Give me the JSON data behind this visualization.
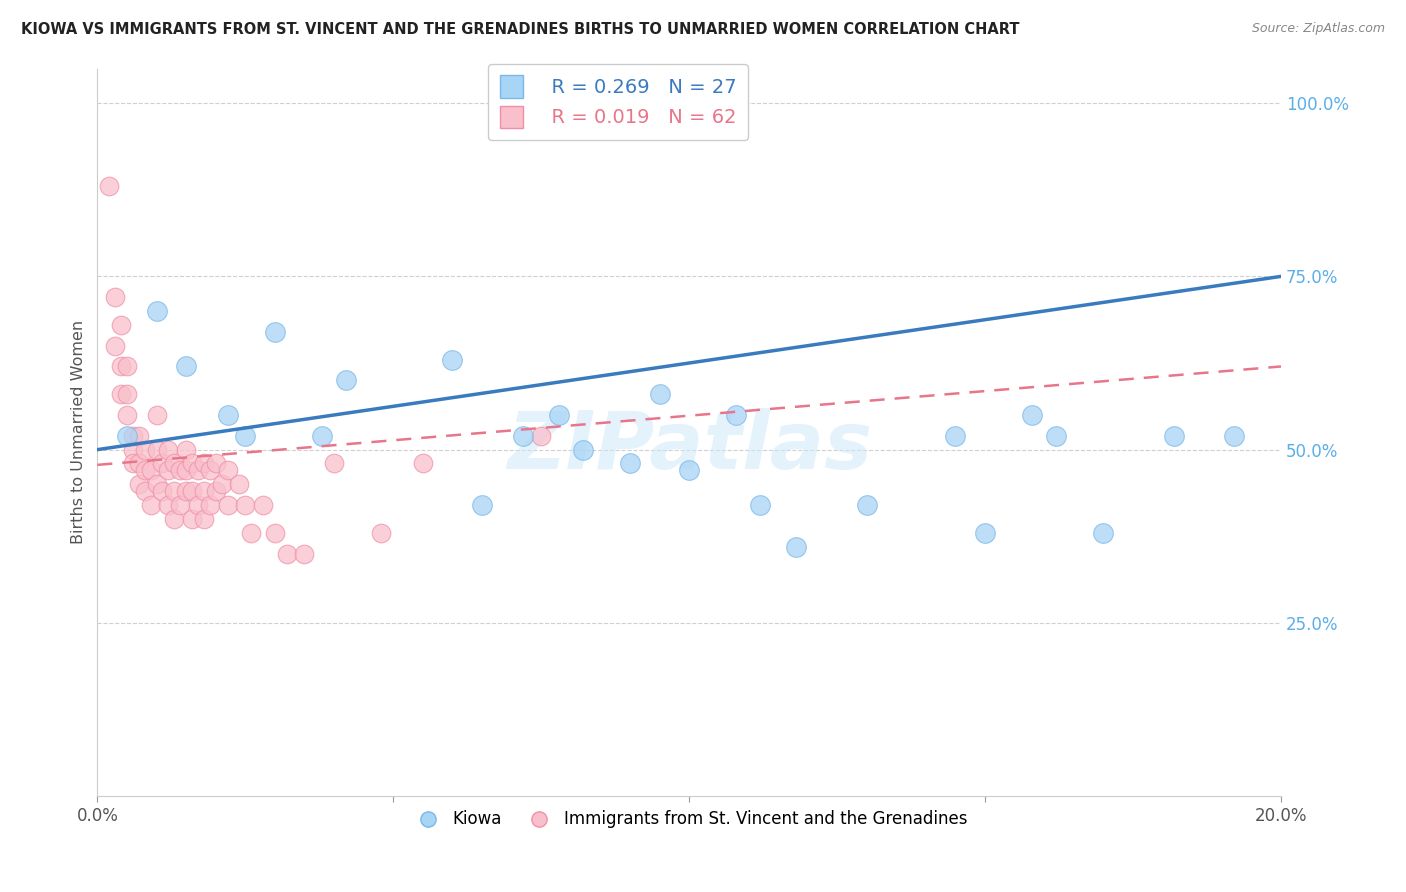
{
  "title": "KIOWA VS IMMIGRANTS FROM ST. VINCENT AND THE GRENADINES BIRTHS TO UNMARRIED WOMEN CORRELATION CHART",
  "source": "Source: ZipAtlas.com",
  "ylabel": "Births to Unmarried Women",
  "watermark": "ZIPatlas",
  "legend": {
    "kiowa_label": "Kiowa",
    "immigrants_label": "Immigrants from St. Vincent and the Grenadines",
    "kiowa_R": "R = 0.269",
    "kiowa_N": "N = 27",
    "immigrants_R": "R = 0.019",
    "immigrants_N": "N = 62"
  },
  "kiowa_color": "#a8d4f5",
  "kiowa_edge_color": "#7ab8e8",
  "immigrants_color": "#f9c0cb",
  "immigrants_edge_color": "#f090a8",
  "kiowa_line_color": "#3a7bbf",
  "immigrants_line_color": "#e8758a",
  "xlim": [
    0.0,
    0.2
  ],
  "ylim": [
    0.0,
    1.05
  ],
  "ytick_vals": [
    0.25,
    0.5,
    0.75,
    1.0
  ],
  "ytick_labels": [
    "25.0%",
    "50.0%",
    "75.0%",
    "100.0%"
  ],
  "xtick_vals": [
    0.0,
    0.05,
    0.1,
    0.15,
    0.2
  ],
  "xtick_labels": [
    "0.0%",
    "",
    "",
    "",
    "20.0%"
  ],
  "kiowa_x": [
    0.005,
    0.01,
    0.015,
    0.022,
    0.025,
    0.03,
    0.038,
    0.042,
    0.06,
    0.065,
    0.072,
    0.078,
    0.082,
    0.09,
    0.095,
    0.1,
    0.108,
    0.112,
    0.118,
    0.13,
    0.145,
    0.15,
    0.158,
    0.162,
    0.17,
    0.182,
    0.192
  ],
  "kiowa_y": [
    0.52,
    0.7,
    0.62,
    0.55,
    0.52,
    0.67,
    0.52,
    0.6,
    0.63,
    0.42,
    0.52,
    0.55,
    0.5,
    0.48,
    0.58,
    0.47,
    0.55,
    0.42,
    0.36,
    0.42,
    0.52,
    0.38,
    0.55,
    0.52,
    0.38,
    0.52,
    0.52
  ],
  "immigrants_x": [
    0.002,
    0.003,
    0.003,
    0.004,
    0.004,
    0.004,
    0.005,
    0.005,
    0.005,
    0.006,
    0.006,
    0.006,
    0.007,
    0.007,
    0.007,
    0.008,
    0.008,
    0.008,
    0.009,
    0.009,
    0.01,
    0.01,
    0.01,
    0.011,
    0.011,
    0.012,
    0.012,
    0.012,
    0.013,
    0.013,
    0.013,
    0.014,
    0.014,
    0.015,
    0.015,
    0.015,
    0.016,
    0.016,
    0.016,
    0.017,
    0.017,
    0.018,
    0.018,
    0.018,
    0.019,
    0.019,
    0.02,
    0.02,
    0.021,
    0.022,
    0.022,
    0.024,
    0.025,
    0.026,
    0.028,
    0.03,
    0.032,
    0.035,
    0.04,
    0.048,
    0.055,
    0.075
  ],
  "immigrants_y": [
    0.88,
    0.72,
    0.65,
    0.68,
    0.62,
    0.58,
    0.62,
    0.58,
    0.55,
    0.52,
    0.5,
    0.48,
    0.52,
    0.48,
    0.45,
    0.5,
    0.47,
    0.44,
    0.47,
    0.42,
    0.55,
    0.5,
    0.45,
    0.48,
    0.44,
    0.5,
    0.47,
    0.42,
    0.48,
    0.44,
    0.4,
    0.47,
    0.42,
    0.5,
    0.47,
    0.44,
    0.48,
    0.44,
    0.4,
    0.47,
    0.42,
    0.48,
    0.44,
    0.4,
    0.47,
    0.42,
    0.48,
    0.44,
    0.45,
    0.47,
    0.42,
    0.45,
    0.42,
    0.38,
    0.42,
    0.38,
    0.35,
    0.35,
    0.48,
    0.38,
    0.48,
    0.52
  ],
  "kiowa_line_x0": 0.0,
  "kiowa_line_y0": 0.5,
  "kiowa_line_x1": 0.2,
  "kiowa_line_y1": 0.75,
  "imm_line_x0": 0.0,
  "imm_line_y0": 0.478,
  "imm_line_x1": 0.2,
  "imm_line_y1": 0.62
}
